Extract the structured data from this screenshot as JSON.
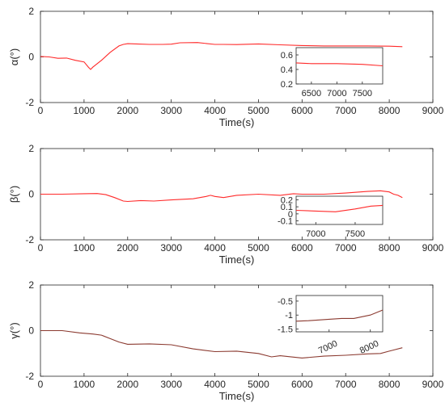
{
  "chart_data": [
    {
      "type": "line",
      "xlabel": "Time(s)",
      "ylabel": "α(°)",
      "xlim": [
        0,
        9000
      ],
      "ylim": [
        -2,
        2
      ],
      "xticks": [
        "0",
        "1000",
        "2000",
        "3000",
        "4000",
        "5000",
        "6000",
        "7000",
        "8000",
        "9000"
      ],
      "yticks": [
        "-2",
        "0",
        "2"
      ],
      "series": [
        {
          "color": "#ff2a2a",
          "x": [
            0,
            200,
            400,
            600,
            800,
            1000,
            1100,
            1150,
            1200,
            1400,
            1600,
            1800,
            1900,
            2000,
            2200,
            2500,
            2800,
            3000,
            3200,
            3600,
            4000,
            4200,
            4500,
            5000,
            5500,
            6000,
            6500,
            7000,
            7500,
            8000,
            8300
          ],
          "y": [
            0.02,
            0.0,
            -0.06,
            -0.05,
            -0.15,
            -0.22,
            -0.45,
            -0.55,
            -0.45,
            -0.15,
            0.2,
            0.48,
            0.55,
            0.58,
            0.57,
            0.55,
            0.55,
            0.56,
            0.62,
            0.63,
            0.55,
            0.55,
            0.54,
            0.57,
            0.53,
            0.5,
            0.48,
            0.48,
            0.48,
            0.47,
            0.45
          ]
        }
      ],
      "inset": {
        "xlim": [
          6200,
          7900
        ],
        "ylim": [
          0.2,
          0.7
        ],
        "xticks": [
          "6500",
          "7000",
          "7500"
        ],
        "yticks": [
          "0.2",
          "0.4",
          "0.6"
        ],
        "x": [
          6200,
          6500,
          7000,
          7500,
          7900
        ],
        "y": [
          0.49,
          0.48,
          0.48,
          0.47,
          0.45
        ]
      }
    },
    {
      "type": "line",
      "xlabel": "Time(s)",
      "ylabel": "β(°)",
      "xlim": [
        0,
        9000
      ],
      "ylim": [
        -2,
        2
      ],
      "xticks": [
        "0",
        "1000",
        "2000",
        "3000",
        "4000",
        "5000",
        "6000",
        "7000",
        "8000",
        "9000"
      ],
      "yticks": [
        "-2",
        "0",
        "2"
      ],
      "series": [
        {
          "color": "#ff2a2a",
          "x": [
            0,
            500,
            1000,
            1300,
            1500,
            1700,
            1900,
            2000,
            2300,
            2600,
            3000,
            3500,
            3800,
            3900,
            4000,
            4200,
            4500,
            5000,
            5500,
            5800,
            6000,
            6500,
            7000,
            7500,
            7800,
            8000,
            8050,
            8100,
            8200,
            8300
          ],
          "y": [
            0.0,
            0.0,
            0.02,
            0.03,
            -0.02,
            -0.15,
            -0.3,
            -0.32,
            -0.28,
            -0.3,
            -0.25,
            -0.2,
            -0.1,
            -0.05,
            -0.1,
            -0.15,
            -0.05,
            0.0,
            -0.05,
            0.02,
            0.0,
            0.0,
            0.05,
            0.12,
            0.15,
            0.1,
            0.05,
            0.0,
            -0.05,
            -0.15
          ]
        }
      ],
      "inset": {
        "xlim": [
          6750,
          7850
        ],
        "ylim": [
          -0.15,
          0.25
        ],
        "xticks": [
          "7000",
          "7500"
        ],
        "yticks": [
          "-0.1",
          "0",
          "0.1",
          "0.2"
        ],
        "x": [
          6750,
          7000,
          7250,
          7500,
          7700,
          7850
        ],
        "y": [
          0.05,
          0.04,
          0.03,
          0.07,
          0.11,
          0.12
        ]
      }
    },
    {
      "type": "line",
      "xlabel": "Time(s)",
      "ylabel": "γ(°)",
      "xlim": [
        0,
        9000
      ],
      "ylim": [
        -2,
        2
      ],
      "xticks": [
        "0",
        "1000",
        "2000",
        "3000",
        "4000",
        "5000",
        "6000",
        "7000",
        "8000",
        "9000"
      ],
      "yticks": [
        "-2",
        "0",
        "2"
      ],
      "series": [
        {
          "color": "#8b3a30",
          "x": [
            0,
            500,
            900,
            1200,
            1400,
            1600,
            1800,
            2000,
            2500,
            3000,
            3500,
            4000,
            4500,
            5000,
            5300,
            5500,
            6000,
            6500,
            7000,
            7500,
            7800,
            8000,
            8100,
            8300
          ],
          "y": [
            0.0,
            0.0,
            -0.1,
            -0.15,
            -0.2,
            -0.35,
            -0.5,
            -0.6,
            -0.58,
            -0.62,
            -0.8,
            -0.92,
            -0.9,
            -1.0,
            -1.15,
            -1.1,
            -1.2,
            -1.12,
            -1.08,
            -1.02,
            -1.0,
            -0.9,
            -0.85,
            -0.75
          ]
        }
      ],
      "inset": {
        "xlim": [
          6200,
          8300
        ],
        "ylim": [
          -1.6,
          -0.3
        ],
        "xticks": [
          "7000",
          "8000"
        ],
        "yticks": [
          "-1.5",
          "-1",
          "-0.5"
        ],
        "x": [
          6200,
          6500,
          7000,
          7300,
          7600,
          8000,
          8300
        ],
        "y": [
          -1.22,
          -1.2,
          -1.15,
          -1.12,
          -1.12,
          -1.0,
          -0.82
        ]
      }
    }
  ]
}
